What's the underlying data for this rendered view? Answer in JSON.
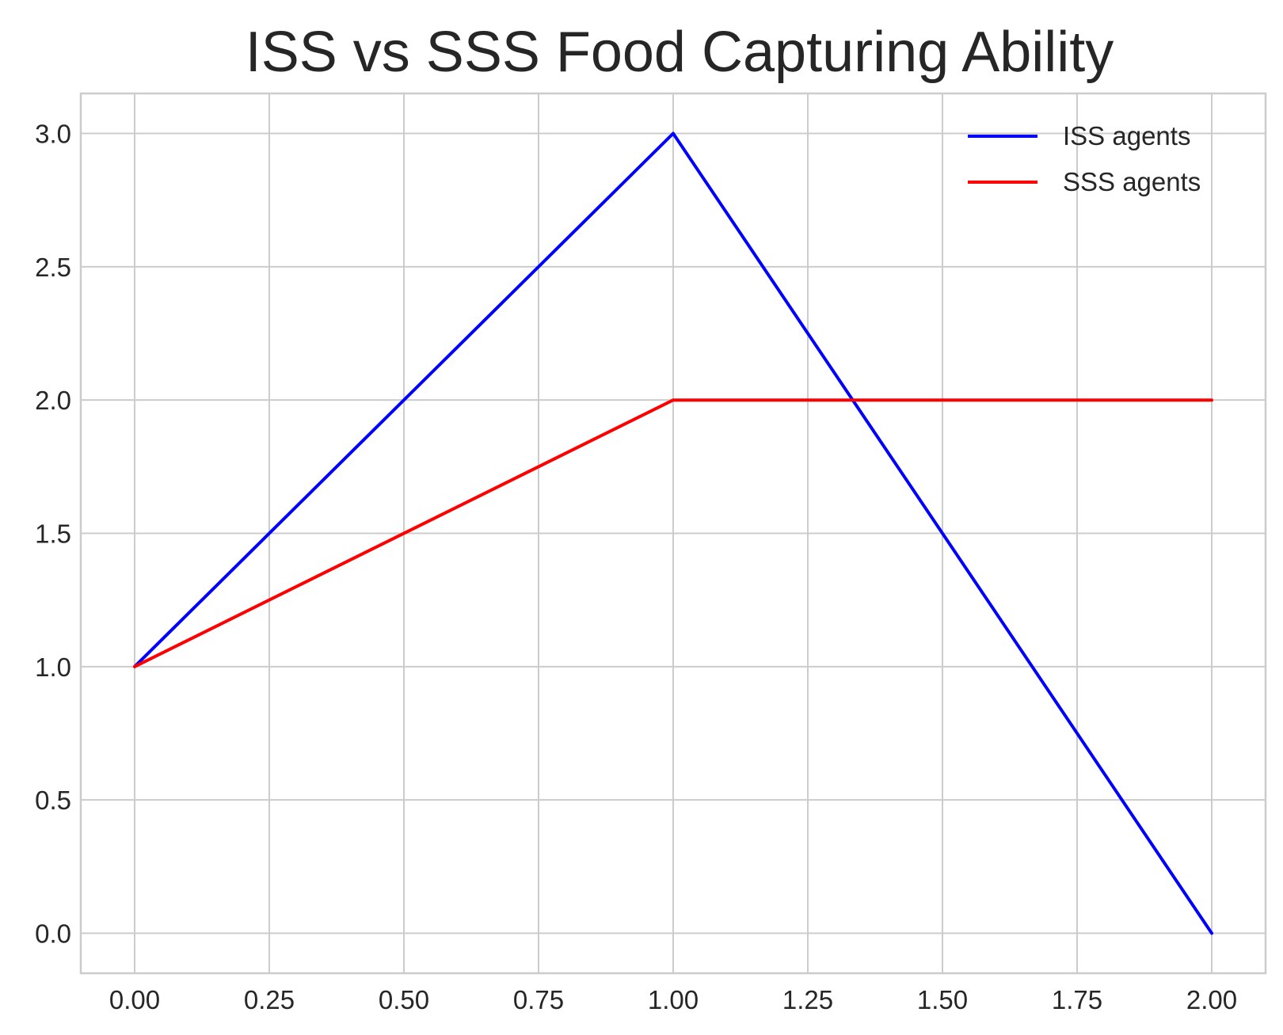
{
  "chart_data": {
    "type": "line",
    "title": "ISS vs SSS Food Capturing Ability",
    "xlabel": "",
    "ylabel": "",
    "x": [
      0,
      1,
      2
    ],
    "series": [
      {
        "name": "ISS agents",
        "values": [
          1,
          3,
          0
        ],
        "color": "#0000ff"
      },
      {
        "name": "SSS agents",
        "values": [
          1,
          2,
          2
        ],
        "color": "#ff0000"
      }
    ],
    "xlim": [
      -0.1,
      2.1
    ],
    "ylim": [
      -0.15,
      3.15
    ],
    "xticks": [
      0,
      0.25,
      0.5,
      0.75,
      1,
      1.25,
      1.5,
      1.75,
      2
    ],
    "xtick_labels": [
      "0.00",
      "0.25",
      "0.50",
      "0.75",
      "1.00",
      "1.25",
      "1.50",
      "1.75",
      "2.00"
    ],
    "yticks": [
      0,
      0.5,
      1,
      1.5,
      2,
      2.5,
      3
    ],
    "ytick_labels": [
      "0.0",
      "0.5",
      "1.0",
      "1.5",
      "2.0",
      "2.5",
      "3.0"
    ],
    "grid": true,
    "legend": "top-right"
  }
}
